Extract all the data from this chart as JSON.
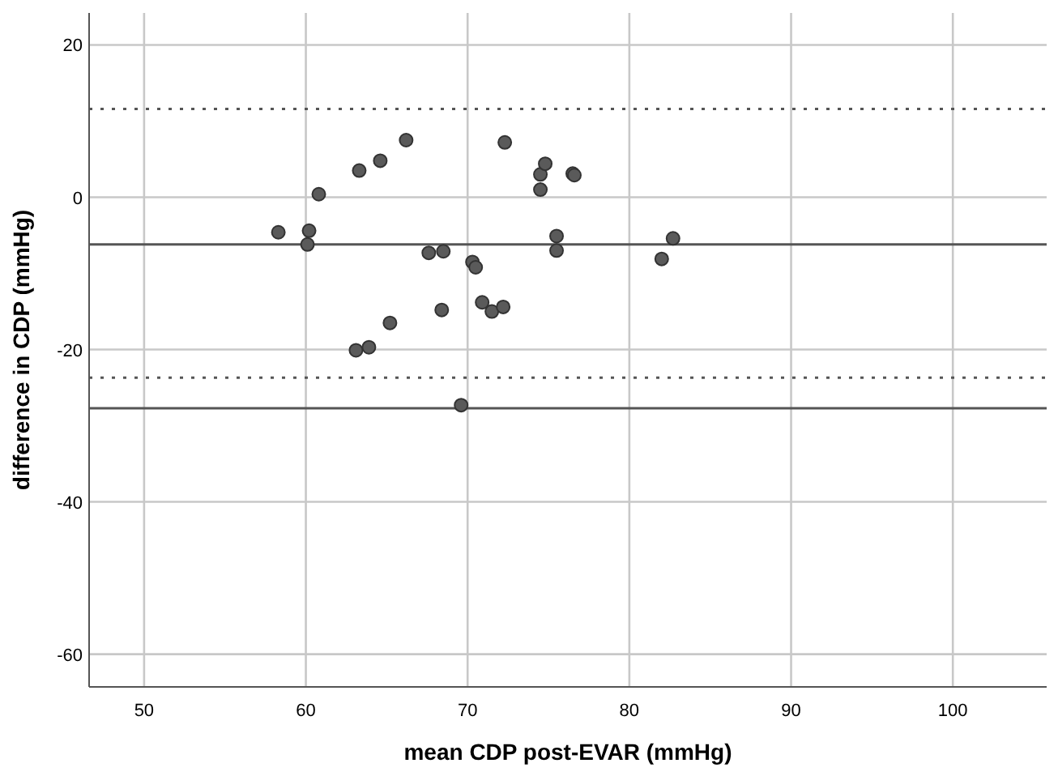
{
  "chart_data": {
    "type": "scatter",
    "xlabel": "mean CDP post-EVAR (mmHg)",
    "ylabel": "difference in CDP (mmHg)",
    "xlim": [
      46.6,
      105.8
    ],
    "ylim": [
      -64.3,
      24.2
    ],
    "xticks": [
      50,
      60,
      70,
      80,
      90,
      100
    ],
    "yticks": [
      20,
      0,
      -20,
      -40,
      -60
    ],
    "grid": true,
    "marker": "circle",
    "series": [
      {
        "color": "#5a5a5a",
        "x": [
          58.3,
          60.2,
          60.1,
          60.8,
          63.3,
          64.6,
          66.2,
          63.1,
          63.9,
          65.2,
          67.6,
          68.5,
          68.4,
          69.6,
          70.3,
          70.5,
          70.9,
          71.5,
          72.2,
          72.3,
          74.5,
          74.5,
          74.8,
          75.5,
          75.5,
          76.5,
          76.6,
          82.0,
          82.7
        ],
        "values": [
          -4.6,
          -4.4,
          -6.2,
          0.4,
          3.5,
          4.8,
          7.5,
          -20.1,
          -19.7,
          -16.5,
          -7.3,
          -7.1,
          -14.8,
          -27.3,
          -8.5,
          -9.2,
          -13.8,
          -15.0,
          -14.4,
          7.2,
          1.0,
          3.0,
          4.4,
          -5.1,
          -7.0,
          3.1,
          2.9,
          -8.1,
          -5.4
        ]
      }
    ],
    "ref_lines": [
      {
        "axis": "y",
        "value": 11.6,
        "line_style": "dotted",
        "color": "#555555"
      },
      {
        "axis": "y",
        "value": -6.2,
        "line_style": "solid",
        "color": "#555555"
      },
      {
        "axis": "y",
        "value": -23.7,
        "line_style": "dotted",
        "color": "#555555"
      },
      {
        "axis": "y",
        "value": -27.7,
        "line_style": "solid",
        "color": "#555555"
      }
    ]
  }
}
